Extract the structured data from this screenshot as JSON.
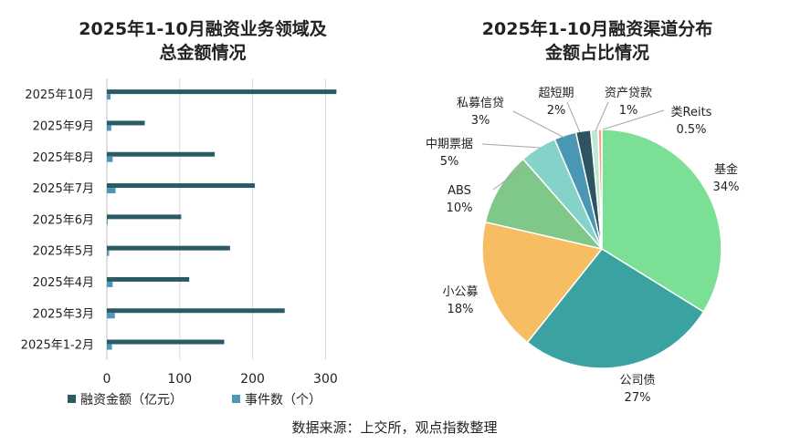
{
  "chart_data": [
    {
      "type": "bar",
      "orientation": "horizontal",
      "title_lines": [
        "2025年1-10月融资业务领域及",
        "总金额情况"
      ],
      "categories": [
        "2025年10月",
        "2025年9月",
        "2025年8月",
        "2025年7月",
        "2025年6月",
        "2025年5月",
        "2025年4月",
        "2025年3月",
        "2025年1-2月"
      ],
      "series": [
        {
          "name": "融资金额（亿元）",
          "color": "#2a5a64",
          "values": [
            315,
            52,
            148,
            203,
            102,
            169,
            113,
            244,
            161
          ]
        },
        {
          "name": "事件数（个）",
          "color": "#4e97b8",
          "values": [
            5,
            6,
            8,
            12,
            1,
            3,
            8,
            11,
            7
          ]
        }
      ],
      "xlim": [
        0,
        350
      ],
      "xticks": [
        0,
        100,
        200,
        300
      ],
      "legend": "bottom",
      "grid": true
    },
    {
      "type": "pie",
      "title_lines": [
        "2025年1-10月融资渠道分布",
        "金额占比情况"
      ],
      "slices": [
        {
          "label": "基金",
          "pct_label": "34%",
          "value": 34,
          "color": "#7be095"
        },
        {
          "label": "公司债",
          "pct_label": "27%",
          "value": 27,
          "color": "#3aa3a1"
        },
        {
          "label": "小公募",
          "pct_label": "18%",
          "value": 18,
          "color": "#f7bd63"
        },
        {
          "label": "ABS",
          "pct_label": "10%",
          "value": 10,
          "color": "#7fc88a"
        },
        {
          "label": "中期票据",
          "pct_label": "5%",
          "value": 5,
          "color": "#84d2c8"
        },
        {
          "label": "私募信贷",
          "pct_label": "3%",
          "value": 3,
          "color": "#4a97b3"
        },
        {
          "label": "超短期",
          "pct_label": "2%",
          "value": 2,
          "color": "#2d5460"
        },
        {
          "label": "资产贷款",
          "pct_label": "1%",
          "value": 1,
          "color": "#bfe8d2"
        },
        {
          "label": "类Reits",
          "pct_label": "0.5%",
          "value": 0.5,
          "color": "#f4a08a"
        }
      ]
    }
  ],
  "source_note": "数据来源：上交所，观点指数整理"
}
